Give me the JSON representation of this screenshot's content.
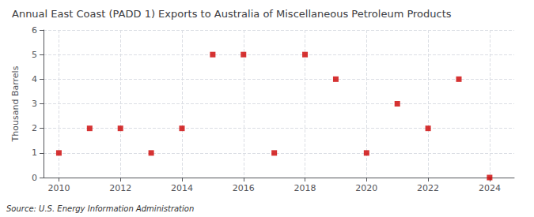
{
  "chart_data": {
    "type": "scatter",
    "title": "Annual East Coast (PADD 1) Exports to Australia of Miscellaneous Petroleum Products",
    "ylabel": "Thousand Barrels",
    "source": "Source: U.S. Energy Information Administration",
    "x": [
      2010,
      2011,
      2012,
      2013,
      2014,
      2015,
      2016,
      2017,
      2018,
      2019,
      2020,
      2021,
      2022,
      2023,
      2024
    ],
    "values": [
      1,
      2,
      2,
      1,
      2,
      5,
      5,
      1,
      5,
      4,
      1,
      3,
      2,
      4,
      0
    ],
    "color": "#cc0000",
    "marker": "square",
    "xlim": [
      2009.5,
      2024.8
    ],
    "xticks": [
      2010,
      2012,
      2014,
      2016,
      2018,
      2020,
      2022,
      2024
    ],
    "ylim": [
      0,
      6
    ],
    "yticks": [
      0,
      1,
      2,
      3,
      4,
      5,
      6
    ],
    "grid": true
  }
}
